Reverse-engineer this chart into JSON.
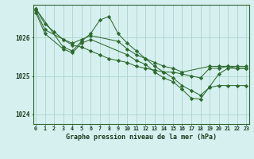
{
  "title": "Graphe pression niveau de la mer (hPa)",
  "bg_color": "#d6f0f0",
  "grid_color": "#b0d8d0",
  "line_color": "#2d6a2d",
  "marker_color": "#2d6a2d",
  "ylim": [
    1023.75,
    1026.85
  ],
  "xlim": [
    -0.3,
    23.3
  ],
  "yticks": [
    1024,
    1025,
    1026
  ],
  "xticks": [
    0,
    1,
    2,
    3,
    4,
    5,
    6,
    7,
    8,
    9,
    10,
    11,
    12,
    13,
    14,
    15,
    16,
    17,
    18,
    19,
    20,
    21,
    22,
    23
  ],
  "series": [
    {
      "x": [
        0,
        1,
        2,
        3,
        4,
        5,
        6,
        7,
        8,
        9,
        10,
        11,
        12,
        13,
        14,
        15,
        16,
        17,
        18,
        19,
        20,
        21,
        22,
        23
      ],
      "y": [
        1026.75,
        1026.35,
        1026.15,
        1025.95,
        1025.8,
        1025.75,
        1025.65,
        1025.55,
        1025.45,
        1025.4,
        1025.35,
        1025.25,
        1025.2,
        1025.15,
        1025.1,
        1025.1,
        1025.05,
        1025.0,
        1024.95,
        1025.2,
        1025.2,
        1025.25,
        1025.2,
        1025.2
      ]
    },
    {
      "x": [
        0,
        1,
        3,
        4,
        5,
        6,
        9,
        10,
        11,
        12,
        13,
        14,
        15,
        16,
        19,
        20,
        21,
        22,
        23
      ],
      "y": [
        1026.7,
        1026.2,
        1025.95,
        1025.85,
        1025.95,
        1026.05,
        1025.9,
        1025.7,
        1025.55,
        1025.45,
        1025.35,
        1025.25,
        1025.2,
        1025.1,
        1025.25,
        1025.25,
        1025.25,
        1025.25,
        1025.25
      ]
    },
    {
      "x": [
        0,
        3,
        4,
        5,
        6,
        7,
        8,
        9,
        10,
        11,
        12,
        13,
        14,
        15,
        16,
        17,
        18,
        19,
        20,
        21,
        22,
        23
      ],
      "y": [
        1026.75,
        1025.75,
        1025.65,
        1025.9,
        1026.1,
        1026.45,
        1026.55,
        1026.1,
        1025.85,
        1025.65,
        1025.45,
        1025.25,
        1025.1,
        1024.95,
        1024.75,
        1024.62,
        1024.5,
        1024.7,
        1024.75,
        1024.75,
        1024.75,
        1024.75
      ]
    },
    {
      "x": [
        0,
        1,
        3,
        4,
        5,
        6,
        10,
        11,
        12,
        13,
        14,
        15,
        16,
        17,
        18,
        19,
        20,
        21,
        22,
        23
      ],
      "y": [
        1026.65,
        1026.1,
        1025.7,
        1025.6,
        1025.85,
        1025.95,
        1025.55,
        1025.4,
        1025.3,
        1025.1,
        1024.95,
        1024.85,
        1024.65,
        1024.42,
        1024.4,
        1024.72,
        1025.05,
        1025.2,
        1025.2,
        1025.2
      ]
    }
  ]
}
